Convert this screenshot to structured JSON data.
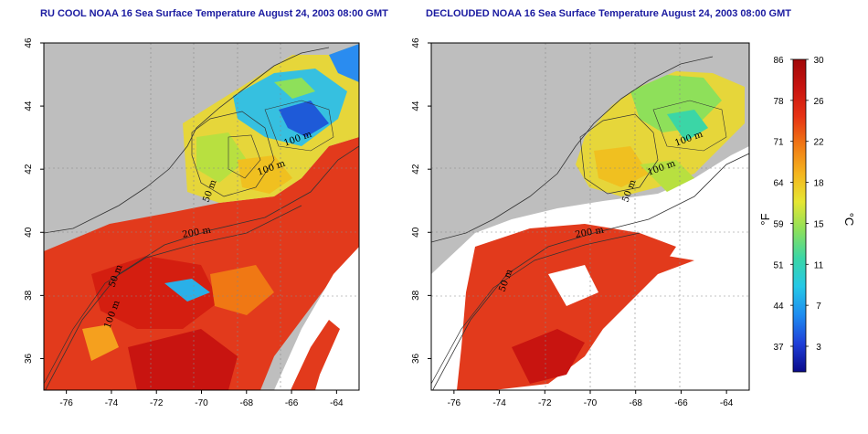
{
  "titles": {
    "left": "RU COOL NOAA 16 Sea Surface Temperature August 24, 2003 08:00 GMT",
    "right": "DECLOUDED NOAA 16 Sea Surface Temperature August 24, 2003 08:00 GMT"
  },
  "map_extent": {
    "lon": [
      -77,
      -63
    ],
    "lat": [
      35,
      46
    ]
  },
  "lon_ticks": [
    "-76",
    "-74",
    "-72",
    "-70",
    "-68",
    "-66",
    "-64"
  ],
  "lat_ticks": [
    "36",
    "38",
    "40",
    "42",
    "44",
    "46"
  ],
  "contour_labels": {
    "left": [
      "100 m",
      "100 m",
      "50 m",
      "200 m",
      "50 m",
      "100 m"
    ],
    "right": [
      "100 m",
      "100 m",
      "50 m",
      "200 m",
      "50 m"
    ]
  },
  "colorbar": {
    "fahrenheit_label": "°F",
    "celsius_label": "°C",
    "fahrenheit_ticks": [
      "86",
      "78",
      "71",
      "64",
      "59",
      "51",
      "44",
      "37"
    ],
    "celsius_ticks": [
      "30",
      "26",
      "22",
      "18",
      "15",
      "11",
      "7",
      "3"
    ],
    "colors": [
      "#0a0a8a",
      "#1f3fd8",
      "#1e8cf0",
      "#25c8e6",
      "#3bd6a6",
      "#8ee05a",
      "#e6e632",
      "#f5b41e",
      "#f07814",
      "#e63214",
      "#c81410",
      "#a00808"
    ]
  },
  "colors": {
    "land": "#bebebe",
    "cloud": "#ffffff",
    "warm_sea": "#e8301a",
    "cool_sea": "#2ab0e8",
    "title": "#1a1aa0"
  }
}
